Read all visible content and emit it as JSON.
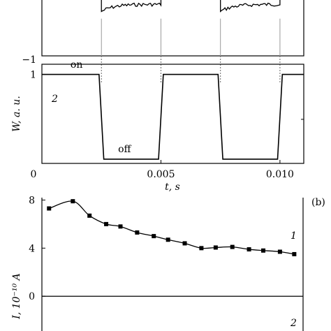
{
  "chart_data": [
    {
      "type": "line",
      "panel": "top",
      "xlim": [
        0,
        0.011
      ],
      "ylim": [
        -1,
        1
      ],
      "y_ticks": [
        {
          "value": -1,
          "label": "−1"
        }
      ],
      "switch_times": [
        0.0025,
        0.005,
        0.0075,
        0.01
      ],
      "series": [
        {
          "segments": [
            {
              "x": [
                0.0025,
                0.005
              ],
              "y_start": 0.55,
              "y_end": 0.8
            },
            {
              "x": [
                0.0075,
                0.01
              ],
              "y_start": 0.55,
              "y_end": 0.8
            }
          ]
        }
      ]
    },
    {
      "type": "line",
      "panel": "middle",
      "xlabel": "t, s",
      "ylabel": "W, a. u.",
      "xlim": [
        0,
        0.011
      ],
      "ylim": [
        -0.05,
        1.12
      ],
      "x_ticks": [
        {
          "value": 0,
          "label": "0"
        },
        {
          "value": 0.005,
          "label": "0.005"
        },
        {
          "value": 0.01,
          "label": "0.010"
        }
      ],
      "y_ticks": [
        {
          "value": 1,
          "label": "1"
        }
      ],
      "annotations": [
        {
          "text": "on",
          "x": 0.0012,
          "y": 1.08
        },
        {
          "text": "off",
          "x": 0.0032,
          "y": 0.08
        }
      ],
      "series": [
        {
          "name": "2",
          "x": [
            0,
            0.0024,
            0.0026,
            0.0049,
            0.0051,
            0.0074,
            0.0076,
            0.0099,
            0.0101,
            0.011
          ],
          "y": [
            1,
            1,
            0,
            0,
            1,
            1,
            0,
            0,
            1,
            1
          ]
        }
      ]
    },
    {
      "type": "line",
      "panel": "bottom",
      "panel_label": "(b)",
      "ylabel": "I, 10⁻¹⁰ A",
      "xlim": [
        0,
        0.011
      ],
      "ylim": [
        -2.6,
        8.2
      ],
      "y_ticks": [
        {
          "value": 8,
          "label": "8"
        },
        {
          "value": 4,
          "label": "4"
        },
        {
          "value": 0,
          "label": "0"
        }
      ],
      "series": [
        {
          "name": "1",
          "x": [
            0.0003,
            0.0013,
            0.002,
            0.0027,
            0.0033,
            0.004,
            0.0047,
            0.0053,
            0.006,
            0.0067,
            0.0073,
            0.008,
            0.0087,
            0.0093,
            0.01,
            0.0106
          ],
          "y": [
            7.3,
            7.9,
            6.7,
            6.0,
            5.8,
            5.3,
            5.0,
            4.7,
            4.4,
            4.0,
            4.05,
            4.1,
            3.9,
            3.8,
            3.7,
            3.5
          ]
        },
        {
          "name": "2",
          "x": [
            0,
            0.011
          ],
          "y": [
            -2.4,
            -2.4
          ]
        }
      ]
    }
  ]
}
